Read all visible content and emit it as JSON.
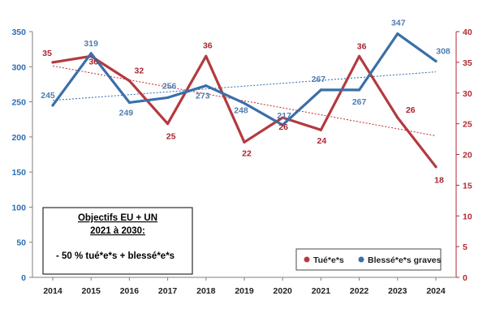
{
  "chart_data": {
    "type": "line",
    "x": [
      "2014",
      "2015",
      "2016",
      "2017",
      "2018",
      "2019",
      "2020",
      "2021",
      "2022",
      "2023",
      "2024"
    ],
    "y_left_ticks": [
      "0",
      "50",
      "100",
      "150",
      "200",
      "250",
      "300",
      "350"
    ],
    "y_right_ticks": [
      "0",
      "5",
      "10",
      "15",
      "20",
      "25",
      "30",
      "35",
      "40"
    ],
    "ylim_left": [
      0,
      350
    ],
    "ylim_right": [
      0,
      40
    ],
    "grid": false,
    "legend_position": "bottom-right",
    "series": [
      {
        "name": "Tué*e*s",
        "axis": "right",
        "color": "#b33a3f",
        "trendline_color": "#c0282d",
        "values": [
          35,
          36,
          32,
          25,
          36,
          22,
          26,
          24,
          36,
          26,
          18
        ],
        "value_labels": [
          "35",
          "36",
          "32",
          "25",
          "36",
          "22",
          "26",
          "24",
          "36",
          "26",
          "18"
        ]
      },
      {
        "name": "Blessé*e*s graves",
        "axis": "left",
        "color": "#3a6fa9",
        "trendline_color": "#2f68b0",
        "values": [
          245,
          319,
          249,
          256,
          273,
          248,
          217,
          267,
          267,
          347,
          308
        ],
        "value_labels": [
          "245",
          "319",
          "249",
          "256",
          "273",
          "248",
          "217",
          "267",
          "267",
          "347",
          "308"
        ]
      }
    ],
    "annotation": {
      "line1": "Objectifs EU + UN",
      "line2": "2021 à 2030:",
      "line3": "- 50 % tué*e*s + blessé*e*s"
    }
  }
}
